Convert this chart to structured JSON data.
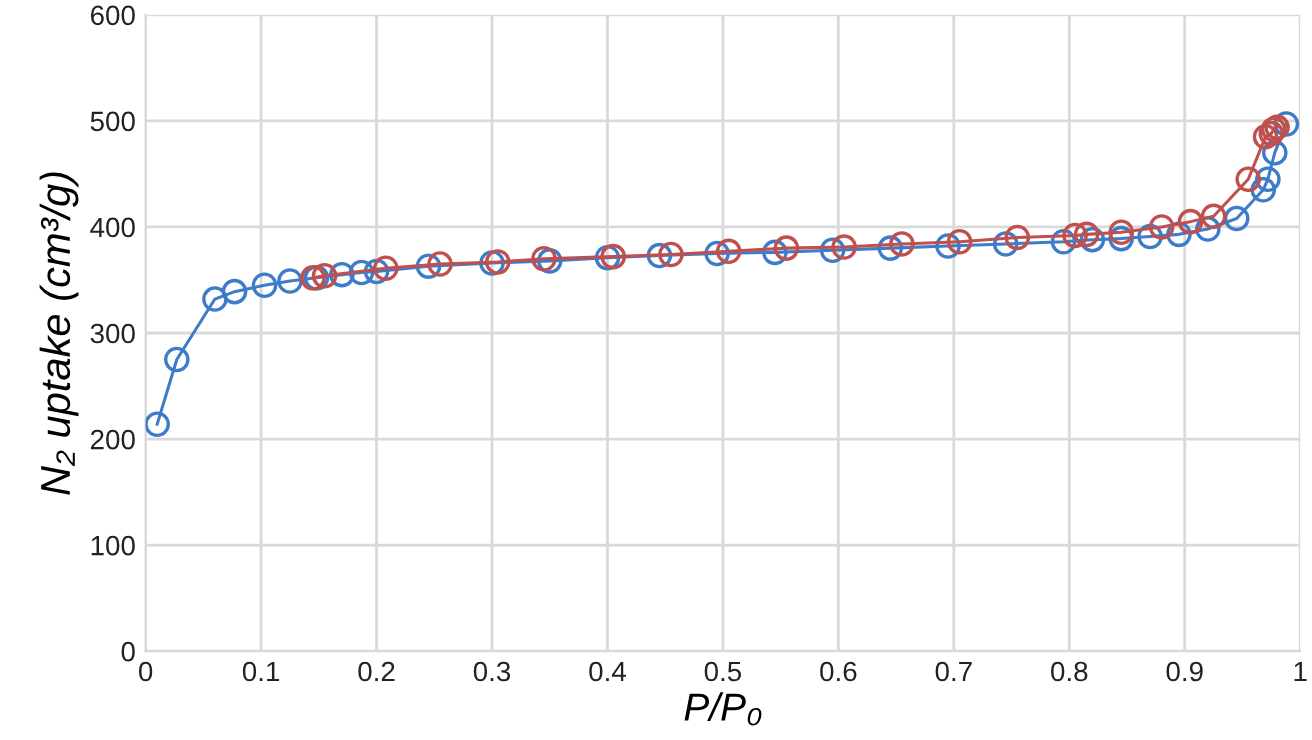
{
  "chart_data": {
    "type": "line",
    "xlabel": "P/P₀",
    "ylabel": "N₂ uptake (cm³/g)",
    "marker": "circle",
    "grid": true,
    "xlim": [
      0,
      1
    ],
    "ylim": [
      0,
      600
    ],
    "xticks": [
      0,
      0.1,
      0.2,
      0.3,
      0.4,
      0.5,
      0.6,
      0.7,
      0.8,
      0.9,
      1
    ],
    "yticks": [
      0,
      100,
      200,
      300,
      400,
      500,
      600
    ],
    "series": [
      {
        "color": "#3d7cc9",
        "x": [
          0.01,
          0.027,
          0.06,
          0.077,
          0.103,
          0.125,
          0.148,
          0.17,
          0.187,
          0.2,
          0.245,
          0.3,
          0.35,
          0.4,
          0.445,
          0.495,
          0.545,
          0.595,
          0.645,
          0.695,
          0.745,
          0.795,
          0.82,
          0.845,
          0.87,
          0.895,
          0.92,
          0.945,
          0.968,
          0.972,
          0.978,
          0.988
        ],
        "values": [
          214,
          275,
          332,
          339,
          345,
          349,
          352,
          355,
          357,
          358,
          363,
          366,
          368,
          371,
          373,
          375,
          376,
          378,
          380,
          382,
          384,
          386,
          388,
          389,
          391,
          393,
          398,
          408,
          435,
          445,
          470,
          497
        ]
      },
      {
        "color": "#c0504d",
        "x": [
          0.98,
          0.977,
          0.975,
          0.97,
          0.955,
          0.925,
          0.905,
          0.88,
          0.845,
          0.815,
          0.805,
          0.755,
          0.705,
          0.655,
          0.605,
          0.555,
          0.505,
          0.455,
          0.405,
          0.345,
          0.305,
          0.255,
          0.208,
          0.155,
          0.145
        ],
        "values": [
          494,
          492,
          488,
          485,
          445,
          410,
          405,
          400,
          395,
          393,
          392,
          390,
          386,
          384,
          381,
          380,
          377,
          374,
          372,
          370,
          367,
          365,
          361,
          354,
          352
        ]
      }
    ]
  }
}
